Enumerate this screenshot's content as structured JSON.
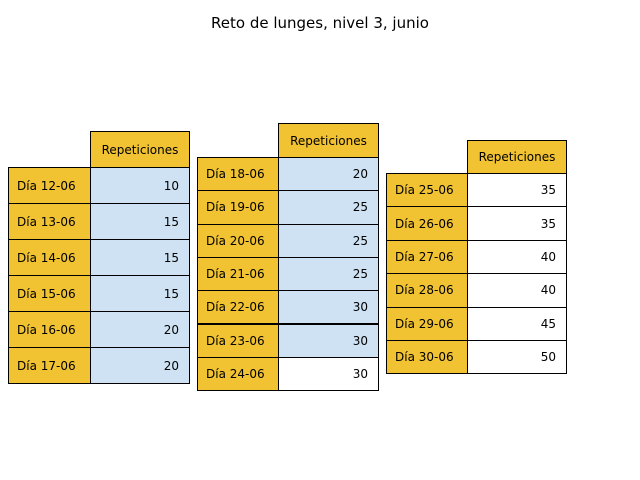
{
  "title": "Reto de lunges, nivel 3, junio",
  "colors": {
    "header": "#f1c232",
    "row_label": "#f1c232",
    "highlight": "#cfe2f3",
    "plain": "#ffffff"
  },
  "chart_data": {
    "type": "table",
    "title": "Reto de lunges, nivel 3, junio",
    "column_header": "Repeticiones",
    "tables": [
      {
        "rows": [
          {
            "day": "Día 12-06",
            "reps": 10,
            "highlight": true
          },
          {
            "day": "Día 13-06",
            "reps": 15,
            "highlight": true
          },
          {
            "day": "Día 14-06",
            "reps": 15,
            "highlight": true
          },
          {
            "day": "Día 15-06",
            "reps": 15,
            "highlight": true
          },
          {
            "day": "Día 16-06",
            "reps": 20,
            "highlight": true
          },
          {
            "day": "Día 17-06",
            "reps": 20,
            "highlight": true
          }
        ]
      },
      {
        "rows": [
          {
            "day": "Día 18-06",
            "reps": 20,
            "highlight": true
          },
          {
            "day": "Día 19-06",
            "reps": 25,
            "highlight": true
          },
          {
            "day": "Día 20-06",
            "reps": 25,
            "highlight": true
          },
          {
            "day": "Día 21-06",
            "reps": 25,
            "highlight": true
          },
          {
            "day": "Día 22-06",
            "reps": 30,
            "highlight": true
          },
          {
            "day": "Día 23-06",
            "reps": 30,
            "highlight": true
          },
          {
            "day": "Día 24-06",
            "reps": 30,
            "highlight": false
          }
        ]
      },
      {
        "rows": [
          {
            "day": "Día 25-06",
            "reps": 35,
            "highlight": false
          },
          {
            "day": "Día 26-06",
            "reps": 35,
            "highlight": false
          },
          {
            "day": "Día 27-06",
            "reps": 40,
            "highlight": false
          },
          {
            "day": "Día 28-06",
            "reps": 40,
            "highlight": false
          },
          {
            "day": "Día 29-06",
            "reps": 45,
            "highlight": false
          },
          {
            "day": "Día 30-06",
            "reps": 50,
            "highlight": false
          }
        ]
      }
    ]
  }
}
